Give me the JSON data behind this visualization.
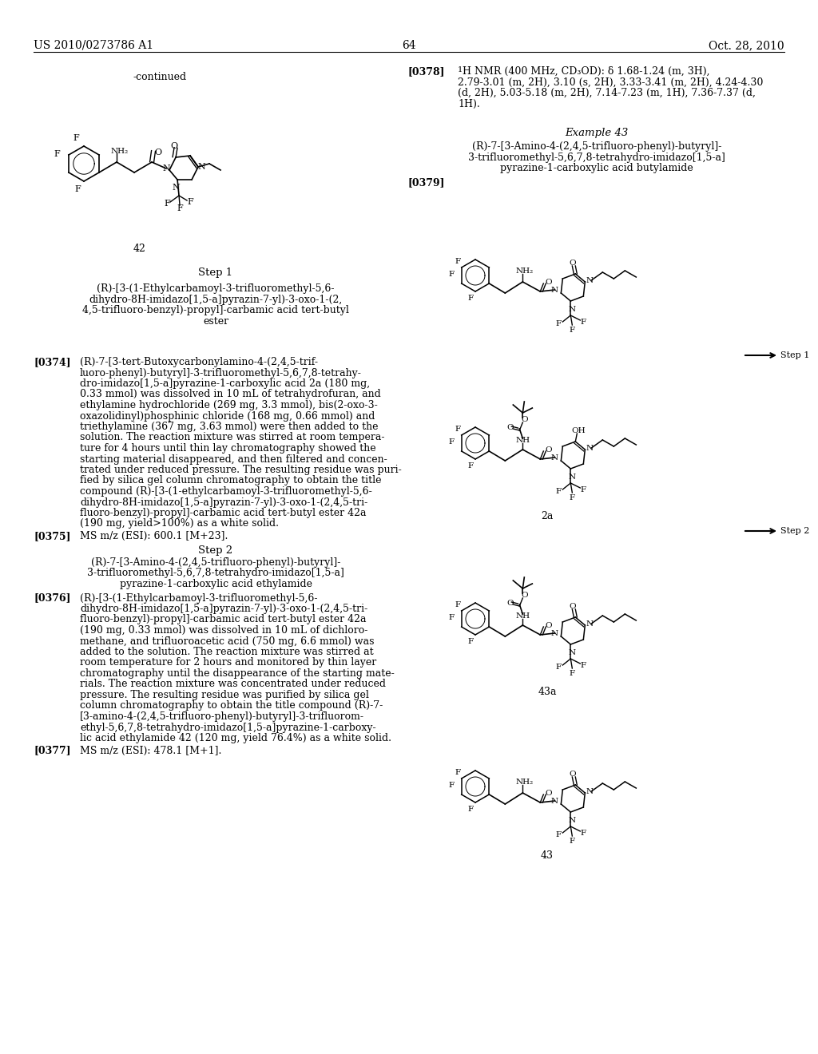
{
  "background_color": "#ffffff",
  "page_number": "64",
  "header_left": "US 2010/0273786 A1",
  "header_right": "Oct. 28, 2010",
  "continued_label": "-continued",
  "compound_42_label": "42",
  "example43_title": "Example 43",
  "example43_name_line1": "(R)-7-[3-Amino-4-(2,4,5-trifluoro-phenyl)-butyryl]-",
  "example43_name_line2": "3-trifluoromethyl-5,6,7,8-tetrahydro-imidazo[1,5-a]",
  "example43_name_line3": "pyrazine-1-carboxylic acid butylamide",
  "para0378_label": "[0378]",
  "para0378_super": "1",
  "para0378_text": "H NMR (400 MHz, CD₃OD): δ 1.68-1.24 (m, 3H),",
  "para0378_line2": "2.79-3.01 (m, 2H), 3.10 (s, 2H), 3.33-3.41 (m, 2H), 4.24-4.30",
  "para0378_line3": "(d, 2H), 5.03-5.18 (m, 2H), 7.14-7.23 (m, 1H), 7.36-7.37 (d,",
  "para0378_line4": "1H).",
  "para0379_label": "[0379]",
  "step1_header": "Step 1",
  "step1_name_line1": "(R)-[3-(1-Ethylcarbamoyl-3-trifluoromethyl-5,6-",
  "step1_name_line2": "dihydro-8H-imidazo[1,5-a]pyrazin-7-yl)-3-oxo-1-(2,",
  "step1_name_line3": "4,5-trifluoro-benzyl)-propyl]-carbamic acid tert-butyl",
  "step1_name_line4": "ester",
  "para0374_label": "[0374]",
  "para0374_lines": [
    "(R)-7-[3-tert-Butoxycarbonylamino-4-(2,4,5-trif-",
    "luoro-phenyl)-butyryl]-3-trifluoromethyl-5,6,7,8-tetrahy-",
    "dro-imidazo[1,5-a]pyrazine-1-carboxylic acid 2a (180 mg,",
    "0.33 mmol) was dissolved in 10 mL of tetrahydrofuran, and",
    "ethylamine hydrochloride (269 mg, 3.3 mmol), bis(2-oxo-3-",
    "oxazolidinyl)phosphinic chloride (168 mg, 0.66 mmol) and",
    "triethylamine (367 mg, 3.63 mmol) were then added to the",
    "solution. The reaction mixture was stirred at room tempera-",
    "ture for 4 hours until thin lay chromatography showed the",
    "starting material disappeared, and then filtered and concen-",
    "trated under reduced pressure. The resulting residue was puri-",
    "fied by silica gel column chromatography to obtain the title",
    "compound (R)-[3-(1-ethylcarbamoyl-3-trifluoromethyl-5,6-",
    "dihydro-8H-imidazo[1,5-a]pyrazin-7-yl)-3-oxo-1-(2,4,5-tri-",
    "fluoro-benzyl)-propyl]-carbamic acid tert-butyl ester 42a",
    "(190 mg, yield>100%) as a white solid."
  ],
  "para0375_label": "[0375]",
  "para0375_text": "MS m/z (ESI): 600.1 [M+23].",
  "step2_header": "Step 2",
  "step2_name_line1": "(R)-7-[3-Amino-4-(2,4,5-trifluoro-phenyl)-butyryl]-",
  "step2_name_line2": "3-trifluoromethyl-5,6,7,8-tetrahydro-imidazo[1,5-a]",
  "step2_name_line3": "pyrazine-1-carboxylic acid ethylamide",
  "para0376_label": "[0376]",
  "para0376_lines": [
    "(R)-[3-(1-Ethylcarbamoyl-3-trifluoromethyl-5,6-",
    "dihydro-8H-imidazo[1,5-a]pyrazin-7-yl)-3-oxo-1-(2,4,5-tri-",
    "fluoro-benzyl)-propyl]-carbamic acid tert-butyl ester 42a",
    "(190 mg, 0.33 mmol) was dissolved in 10 mL of dichloro-",
    "methane, and trifluoroacetic acid (750 mg, 6.6 mmol) was",
    "added to the solution. The reaction mixture was stirred at",
    "room temperature for 2 hours and monitored by thin layer",
    "chromatography until the disappearance of the starting mate-",
    "rials. The reaction mixture was concentrated under reduced",
    "pressure. The resulting residue was purified by silica gel",
    "column chromatography to obtain the title compound (R)-7-",
    "[3-amino-4-(2,4,5-trifluoro-phenyl)-butyryl]-3-trifluorom-",
    "ethyl-5,6,7,8-tetrahydro-imidazo[1,5-a]pyrazine-1-carboxy-",
    "lic acid ethylamide 42 (120 mg, yield 76.4%) as a white solid."
  ],
  "para0377_label": "[0377]",
  "para0377_text": "MS m/z (ESI): 478.1 [M+1].",
  "label_2a": "2a",
  "label_43a": "43a",
  "label_43": "43",
  "step1_arrow_label": "Step 1",
  "step2_arrow_label": "Step 2"
}
